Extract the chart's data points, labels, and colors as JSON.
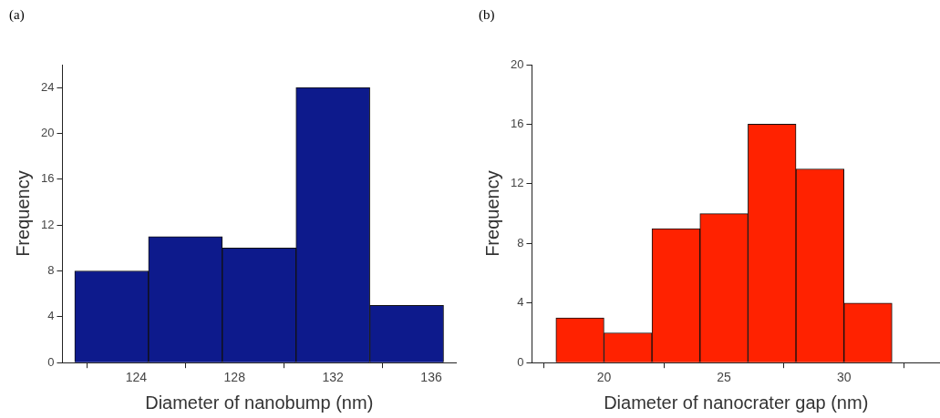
{
  "chart_data": [
    {
      "type": "histogram",
      "title": "(a)",
      "xlabel": "Diameter of nanobump (nm)",
      "ylabel": "Frequency",
      "bins": [
        121.5,
        124.5,
        127.5,
        130.5,
        133.5,
        136.5
      ],
      "values": [
        8,
        11,
        10,
        24,
        5
      ],
      "color": "#0d1a8c",
      "xlim": [
        121,
        137
      ],
      "xticks": [
        124,
        128,
        132,
        136
      ],
      "ylim": [
        0,
        26
      ],
      "yticks": [
        0,
        4,
        8,
        12,
        16,
        20,
        24
      ],
      "grid": false,
      "legend": false
    },
    {
      "type": "histogram",
      "title": "(b)",
      "xlabel": "Diameter of nanocrater gap (nm)",
      "ylabel": "Frequency",
      "bins": [
        18,
        20,
        22,
        24,
        26,
        28,
        30,
        32
      ],
      "values": [
        3,
        2,
        9,
        10,
        16,
        13,
        4
      ],
      "color": "#ff2200",
      "xlim": [
        17,
        34
      ],
      "xticks": [
        20,
        25,
        30
      ],
      "ylim": [
        0,
        20
      ],
      "yticks": [
        0,
        4,
        8,
        12,
        16,
        20
      ],
      "grid": false,
      "legend": false
    }
  ]
}
